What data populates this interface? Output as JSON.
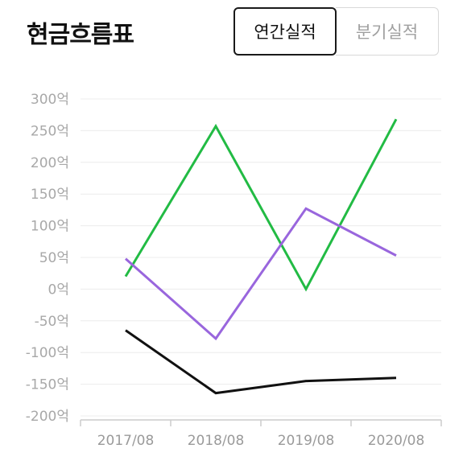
{
  "header": {
    "title": "현금흐름표",
    "toggle": {
      "annual_label": "연간실적",
      "quarterly_label": "분기실적",
      "selected": "annual"
    }
  },
  "chart_data": {
    "type": "line",
    "categories": [
      "2017/08",
      "2018/08",
      "2019/08",
      "2020/08"
    ],
    "y_tick_labels": [
      "300억",
      "250억",
      "200억",
      "150억",
      "100억",
      "50억",
      "0억",
      "-50억",
      "-100억",
      "-150억",
      "-200억"
    ],
    "ylim": [
      -200,
      300
    ],
    "ytick_step": 50,
    "grid": true,
    "legend": "none",
    "series": [
      {
        "color": "#22bb44",
        "values": [
          20,
          257,
          0,
          268
        ]
      },
      {
        "color": "#9966dd",
        "values": [
          48,
          -78,
          127,
          53
        ]
      },
      {
        "color": "#111111",
        "values": [
          -65,
          -164,
          -145,
          -140
        ]
      }
    ]
  }
}
